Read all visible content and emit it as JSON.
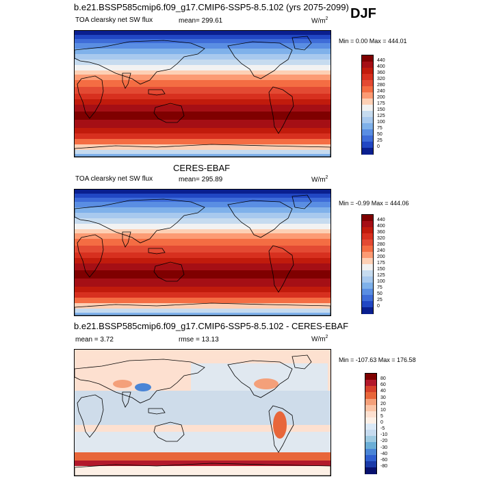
{
  "season": "DJF",
  "panels": [
    {
      "id": "model",
      "header": "b.e21.BSSP585cmip6.f09_g17.CMIP6-SSP5-8.5.102 (yrs 2075-2099)",
      "left_label": "TOA clearsky net SW flux",
      "mean_label": "mean= 299.61",
      "units_base": "W/m",
      "units_exp": "2",
      "minmax": "Min =   0.00 Max = 444.01",
      "colorbar_ticks": [
        "440",
        "400",
        "360",
        "320",
        "280",
        "240",
        "200",
        "175",
        "150",
        "125",
        "100",
        "75",
        "50",
        "25",
        "0"
      ]
    },
    {
      "id": "obs",
      "header": "CERES-EBAF",
      "left_label": "TOA clearsky net SW flux",
      "mean_label": "mean= 295.89",
      "units_base": "W/m",
      "units_exp": "2",
      "minmax": "Min =  -0.99 Max = 444.06",
      "colorbar_ticks": [
        "440",
        "400",
        "360",
        "320",
        "280",
        "240",
        "200",
        "175",
        "150",
        "125",
        "100",
        "75",
        "50",
        "25",
        "0"
      ]
    },
    {
      "id": "diff",
      "header": "b.e21.BSSP585cmip6.f09_g17.CMIP6-SSP5-8.5.102 - CERES-EBAF",
      "left_label": "mean =    3.72",
      "mean_label": "rmse =   13.13",
      "units_base": "W/m",
      "units_exp": "2",
      "minmax": "Min = -107.63 Max = 176.58",
      "colorbar_ticks": [
        "80",
        "60",
        "40",
        "30",
        "20",
        "10",
        "5",
        "0",
        "-5",
        "-10",
        "-20",
        "-30",
        "-40",
        "-60",
        "-80"
      ]
    }
  ],
  "colors": {
    "flux_scale": [
      "#7f0000",
      "#a50f15",
      "#c11b0c",
      "#d7301f",
      "#e34a33",
      "#f46d43",
      "#fc9b74",
      "#fdd0b5",
      "#f2f2f2",
      "#c6dbef",
      "#a8c9ee",
      "#7fb1ea",
      "#5a8ee3",
      "#3e6cd8",
      "#2147c4",
      "#0a1f8f"
    ],
    "diff_scale": [
      "#7f0000",
      "#b2182b",
      "#d6402b",
      "#e8663a",
      "#f4a07a",
      "#fbc4a6",
      "#fde0d0",
      "#fdf0e6",
      "#dbe9f6",
      "#c6dbef",
      "#9ecae1",
      "#6baed6",
      "#4a85d6",
      "#2f5fcf",
      "#1a3aa8",
      "#08116e"
    ],
    "land_outline": "#000000"
  }
}
